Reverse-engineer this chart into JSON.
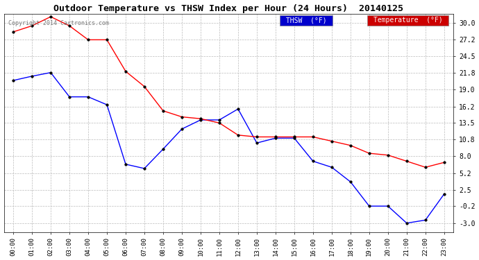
{
  "title": "Outdoor Temperature vs THSW Index per Hour (24 Hours)  20140125",
  "copyright": "Copyright 2014 Cartronics.com",
  "x_labels": [
    "00:00",
    "01:00",
    "02:00",
    "03:00",
    "04:00",
    "05:00",
    "06:00",
    "07:00",
    "08:00",
    "09:00",
    "10:00",
    "11:00",
    "12:00",
    "13:00",
    "14:00",
    "15:00",
    "16:00",
    "17:00",
    "18:00",
    "19:00",
    "20:00",
    "21:00",
    "22:00",
    "23:00"
  ],
  "thsw_values": [
    20.5,
    21.2,
    21.8,
    17.8,
    17.8,
    16.5,
    6.7,
    6.0,
    9.2,
    12.5,
    14.0,
    14.0,
    15.8,
    10.2,
    11.0,
    11.0,
    7.2,
    6.2,
    3.8,
    -0.2,
    -0.2,
    -3.0,
    -2.5,
    1.8
  ],
  "temp_values": [
    28.5,
    29.5,
    31.0,
    29.5,
    27.2,
    27.2,
    22.0,
    19.5,
    15.5,
    14.5,
    14.2,
    13.5,
    11.5,
    11.2,
    11.2,
    11.2,
    11.2,
    10.5,
    9.8,
    8.5,
    8.2,
    7.2,
    6.2,
    7.0
  ],
  "thsw_color": "#0000ff",
  "temp_color": "#ff0000",
  "bg_color": "#ffffff",
  "plot_bg_color": "#ffffff",
  "grid_color": "#bbbbbb",
  "title_color": "#000000",
  "y_ticks": [
    -3.0,
    -0.2,
    2.5,
    5.2,
    8.0,
    10.8,
    13.5,
    16.2,
    19.0,
    21.8,
    24.5,
    27.2,
    30.0
  ],
  "ylim": [
    -4.5,
    31.5
  ],
  "legend_thsw_bg": "#0000cc",
  "legend_temp_bg": "#cc0000",
  "legend_text_color": "#ffffff",
  "figwidth": 6.9,
  "figheight": 3.75,
  "dpi": 100
}
